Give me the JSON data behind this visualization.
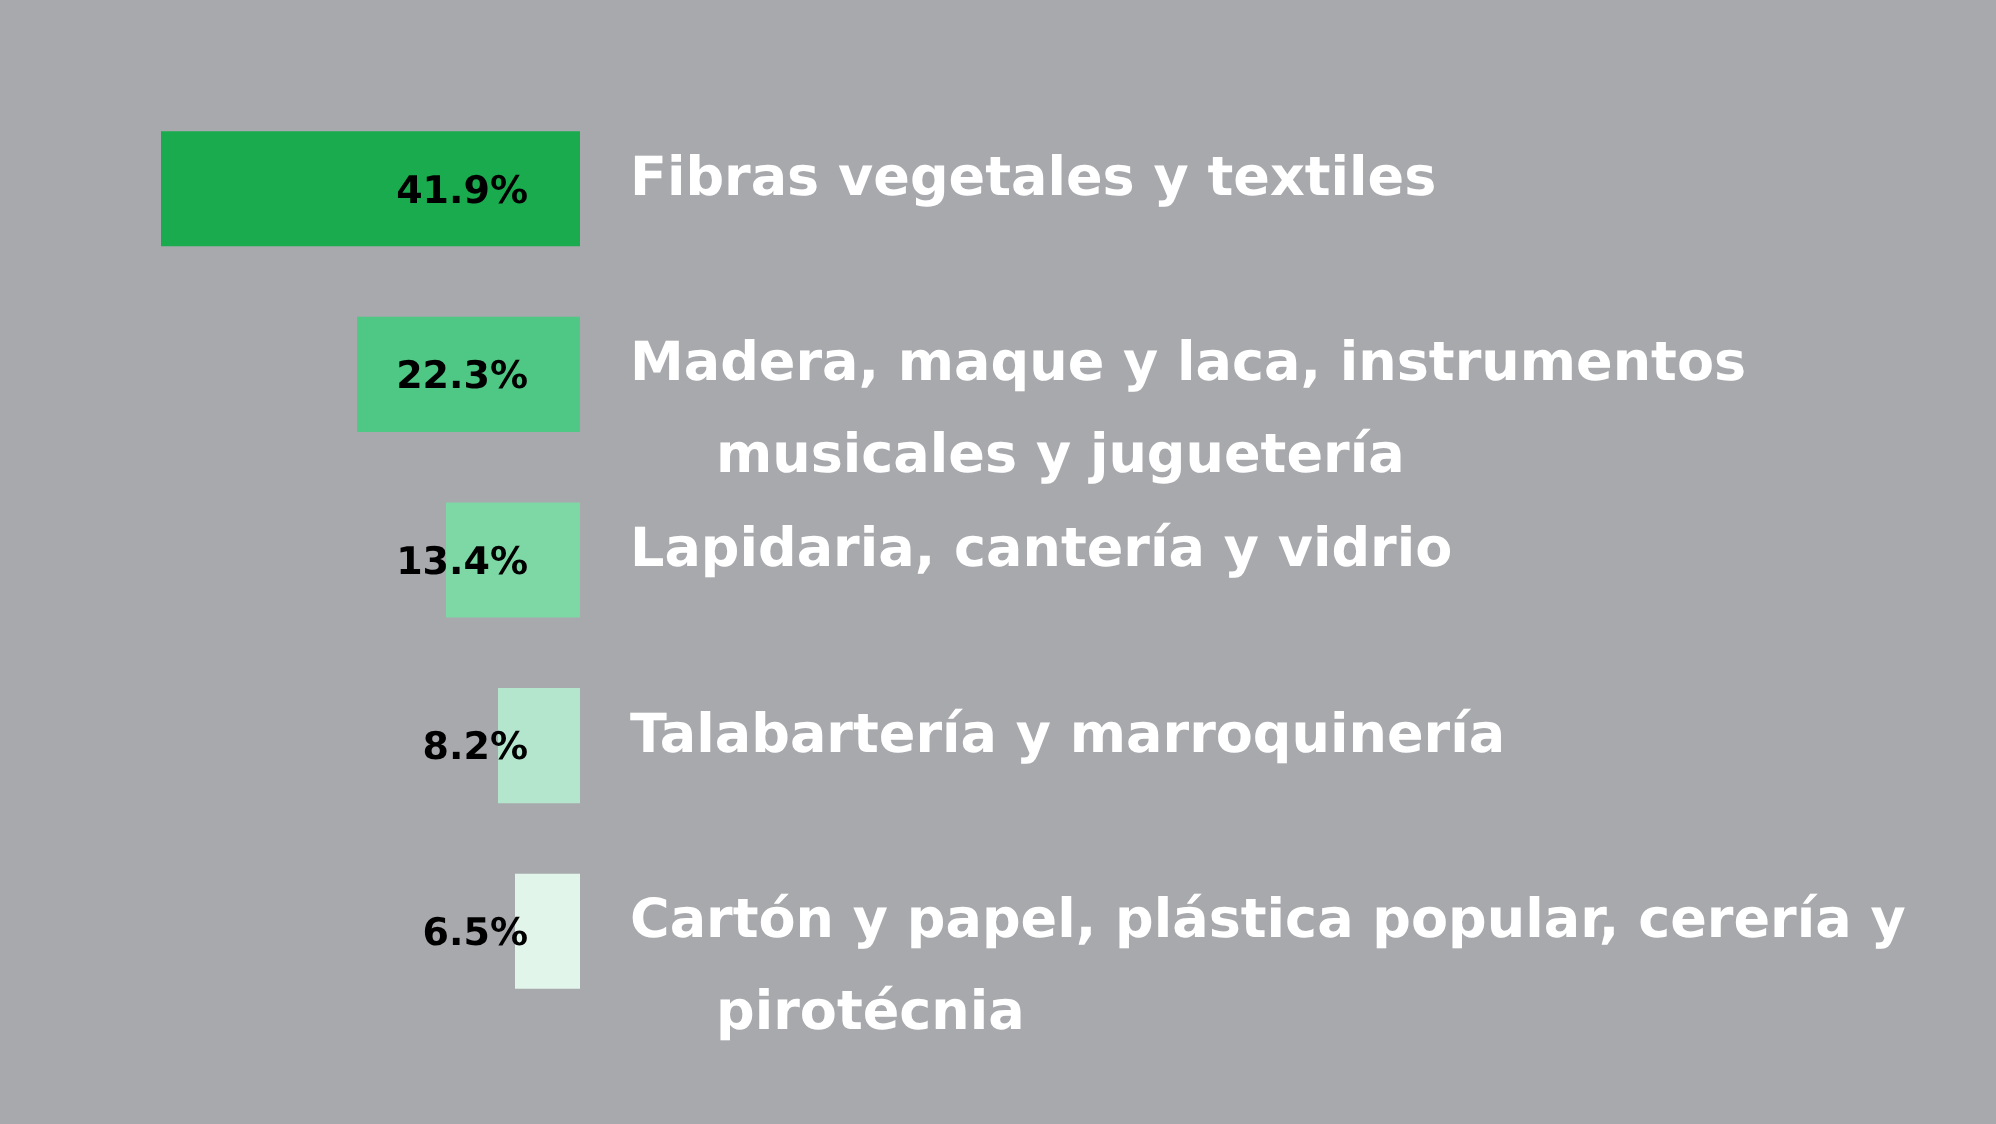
{
  "chart_data": {
    "type": "bar",
    "orientation": "horizontal",
    "categories": [
      "Fibras vegetales y textiles",
      "Madera, maque y laca, instrumentos musicales y juguetería",
      "Lapidaria, cantería y vidrio",
      "Talabartería y marroquinería",
      "Cartón y papel, plástica popular, cerería y pirotécnia"
    ],
    "values": [
      41.9,
      22.3,
      13.4,
      8.2,
      6.5
    ],
    "colors": [
      "#1aab4f",
      "#4fc785",
      "#7ed8a6",
      "#b3e6cc",
      "#e2f5ea"
    ],
    "value_labels": [
      "41.9%",
      "22.3%",
      "13.4%",
      "8.2%",
      "6.5%"
    ],
    "legend": false
  }
}
